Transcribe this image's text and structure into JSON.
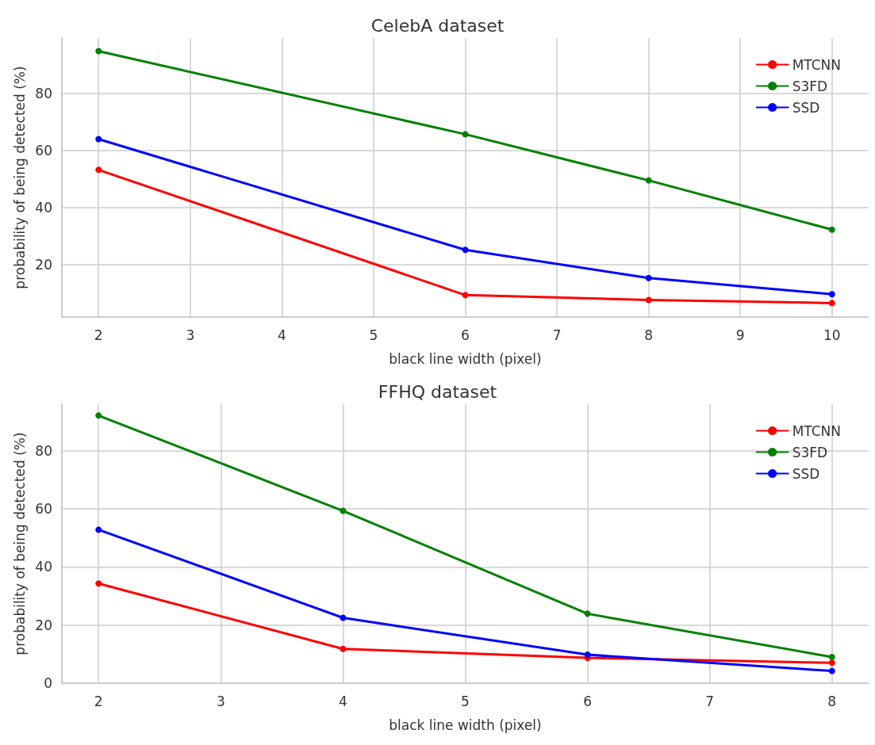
{
  "chart_data": [
    {
      "type": "line",
      "title": "CelebA dataset",
      "xlabel": "black line width (pixel)",
      "ylabel": "probability of being detected (%)",
      "x": [
        2,
        6,
        8,
        10
      ],
      "xlim": [
        1.6,
        10.4
      ],
      "xticks": [
        2,
        3,
        4,
        5,
        6,
        7,
        8,
        9,
        10
      ],
      "ylim": [
        1.5,
        99.5
      ],
      "yticks": [
        20,
        40,
        60,
        80
      ],
      "grid": true,
      "legend": "top right",
      "marker": "circle",
      "line_style": "solid",
      "series": [
        {
          "name": "MTCNN",
          "color": "#ff0000",
          "values": [
            53.2,
            9.2,
            7.5,
            6.4
          ]
        },
        {
          "name": "S3FD",
          "color": "#008000",
          "values": [
            94.9,
            65.7,
            49.5,
            32.2
          ]
        },
        {
          "name": "SSD",
          "color": "#0000ff",
          "values": [
            64.0,
            25.1,
            15.2,
            9.5
          ]
        }
      ]
    },
    {
      "type": "line",
      "title": "FFHQ dataset",
      "xlabel": "black line width (pixel)",
      "ylabel": "probability of being detected (%)",
      "x": [
        2,
        4,
        6,
        8
      ],
      "xlim": [
        1.7,
        8.3
      ],
      "xticks": [
        2,
        3,
        4,
        5,
        6,
        7,
        8
      ],
      "ylim": [
        0,
        96
      ],
      "yticks": [
        0,
        20,
        40,
        60,
        80
      ],
      "grid": true,
      "legend": "top right",
      "marker": "circle",
      "line_style": "solid",
      "series": [
        {
          "name": "MTCNN",
          "color": "#ff0000",
          "values": [
            34.3,
            11.8,
            8.7,
            7.0
          ]
        },
        {
          "name": "S3FD",
          "color": "#008000",
          "values": [
            92.1,
            59.3,
            23.9,
            9.0
          ]
        },
        {
          "name": "SSD",
          "color": "#0000ff",
          "values": [
            52.8,
            22.5,
            9.8,
            4.2
          ]
        }
      ]
    }
  ]
}
